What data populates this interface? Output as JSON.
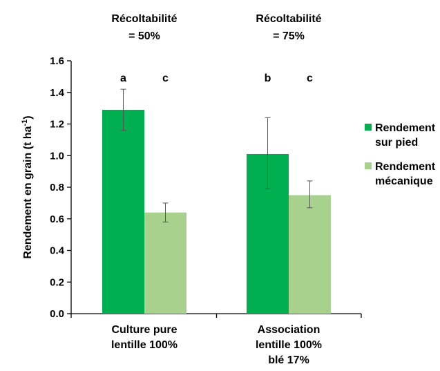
{
  "chart_data": {
    "type": "bar",
    "ylabel": {
      "main": "Rendement en grain (t ha",
      "sup": "-1",
      "tail": ")"
    },
    "ylim": [
      0,
      1.6
    ],
    "yticks": [
      "0.0",
      "0.2",
      "0.4",
      "0.6",
      "0.8",
      "1.0",
      "1.2",
      "1.4",
      "1.6"
    ],
    "grid": false,
    "legend_position": "right",
    "categories": [
      {
        "lines": [
          "Culture pure",
          "lentille 100%"
        ]
      },
      {
        "lines": [
          "Association",
          "lentille 100%",
          "blé 17%"
        ]
      }
    ],
    "annotations": [
      {
        "lines": [
          "Récoltabilité",
          "= 50%"
        ]
      },
      {
        "lines": [
          "Récoltabilité",
          "= 75%"
        ]
      }
    ],
    "series": [
      {
        "name_lines": [
          "Rendement",
          "sur pied"
        ],
        "color": "#00b050",
        "values": [
          1.29,
          1.01
        ],
        "err_low": [
          1.16,
          0.79
        ],
        "err_high": [
          1.42,
          1.24
        ],
        "sig": [
          "a",
          "b"
        ]
      },
      {
        "name_lines": [
          "Rendement",
          "mécanique"
        ],
        "color": "#a9d18e",
        "values": [
          0.64,
          0.75
        ],
        "err_low": [
          0.58,
          0.67
        ],
        "err_high": [
          0.7,
          0.84
        ],
        "sig": [
          "c",
          "c"
        ]
      }
    ]
  }
}
